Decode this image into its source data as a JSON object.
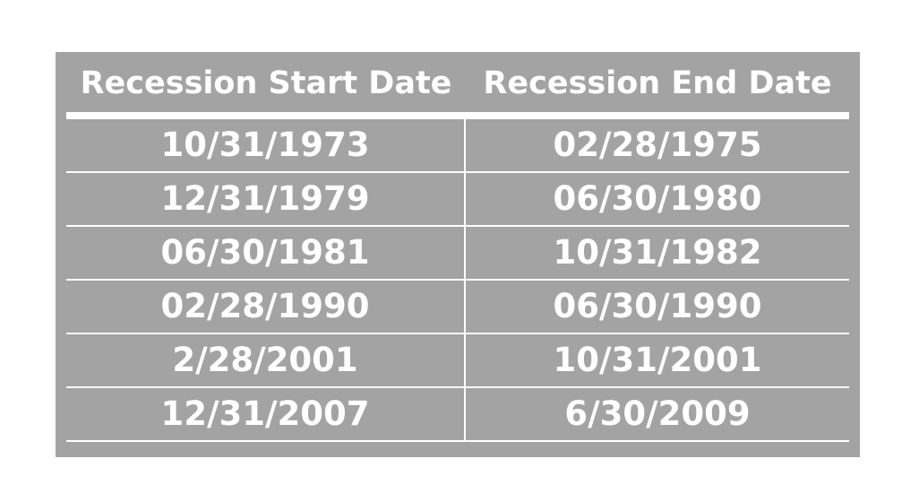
{
  "table": {
    "headers": [
      "Recession Start Date",
      "Recession End Date"
    ],
    "rows": [
      [
        "10/31/1973",
        "02/28/1975"
      ],
      [
        "12/31/1979",
        "06/30/1980"
      ],
      [
        "06/30/1981",
        "10/31/1982"
      ],
      [
        "02/28/1990",
        "06/30/1990"
      ],
      [
        "2/28/2001",
        "10/31/2001"
      ],
      [
        "12/31/2007",
        "6/30/2009"
      ]
    ]
  },
  "colors": {
    "background": "#a3a3a3",
    "text": "#ffffff",
    "rules": "#ffffff"
  }
}
